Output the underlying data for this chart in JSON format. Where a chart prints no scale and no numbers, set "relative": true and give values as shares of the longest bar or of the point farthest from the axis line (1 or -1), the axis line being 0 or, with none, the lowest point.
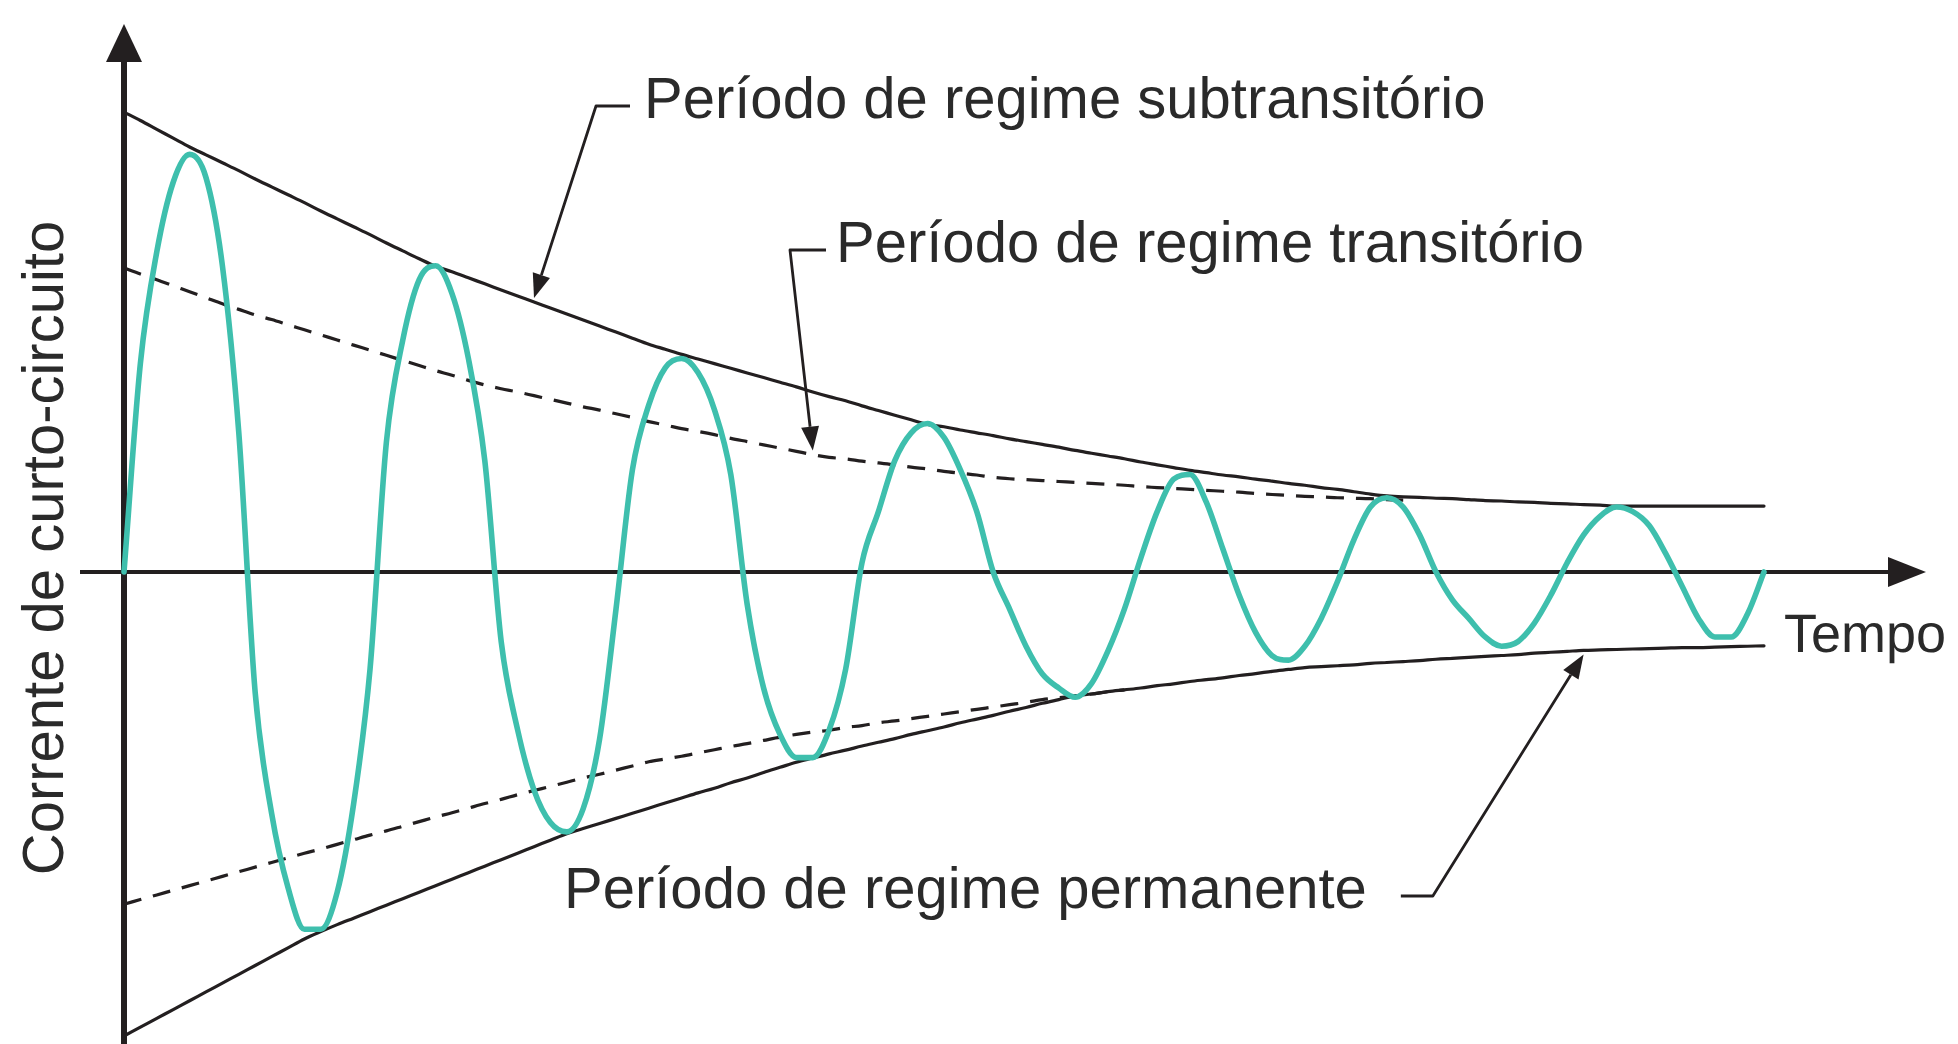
{
  "chart_data": {
    "type": "line",
    "relative": true,
    "marker": "none",
    "xlabel": "Tempo",
    "ylabel": "Corrente de curto-circuito",
    "annotations": [
      "Período de regime subtransitório",
      "Período de regime transitório",
      "Período de regime permanente"
    ],
    "categories": [
      null,
      null,
      null,
      null,
      null,
      null,
      null,
      null,
      null,
      null,
      null,
      null,
      null,
      null,
      null,
      null,
      null,
      null,
      null,
      null,
      null,
      null,
      null,
      null,
      null,
      null,
      null,
      null,
      null,
      null,
      null,
      null,
      null,
      null,
      null,
      null,
      null,
      null,
      null,
      null,
      null,
      null,
      null,
      null,
      null,
      null,
      null,
      null,
      null,
      null,
      null,
      null,
      null,
      null,
      null,
      null,
      null,
      null,
      null,
      null,
      null,
      null,
      null,
      null,
      null,
      null,
      null,
      null,
      null,
      null,
      null,
      null,
      null,
      null,
      null,
      null,
      null,
      null,
      null,
      null,
      null,
      null,
      null,
      null,
      null,
      null,
      null,
      null,
      null,
      null,
      null,
      null,
      null,
      null,
      null,
      null,
      null,
      null,
      null,
      null,
      null
    ],
    "series": [
      {
        "color": "#3ebfad",
        "values": [
          0,
          0.45,
          0.69,
          0.84,
          0.9,
          0.85,
          0.66,
          0.3,
          -0.26,
          -0.52,
          -0.68,
          -0.77,
          -0.77,
          -0.69,
          -0.5,
          -0.21,
          0.28,
          0.5,
          0.63,
          0.66,
          0.6,
          0.46,
          0.24,
          -0.15,
          -0.34,
          -0.47,
          -0.54,
          -0.56,
          -0.51,
          -0.36,
          -0.08,
          0.22,
          0.36,
          0.44,
          0.46,
          0.43,
          0.35,
          0.21,
          -0.07,
          -0.25,
          -0.35,
          -0.4,
          -0.4,
          -0.34,
          -0.21,
          0.02,
          0.13,
          0.24,
          0.3,
          0.32,
          0.29,
          0.22,
          0.13,
          0,
          -0.08,
          -0.16,
          -0.22,
          -0.25,
          -0.27,
          -0.24,
          -0.17,
          -0.08,
          0.03,
          0.13,
          0.2,
          0.21,
          0.15,
          0.05,
          -0.05,
          -0.13,
          -0.18,
          -0.19,
          -0.16,
          -0.1,
          -0.02,
          0.07,
          0.14,
          0.16,
          0.14,
          0.08,
          0,
          -0.06,
          -0.1,
          -0.14,
          -0.16,
          -0.15,
          -0.11,
          -0.05,
          0.02,
          0.08,
          0.12,
          0.14,
          0.13,
          0.1,
          0.04,
          -0.03,
          -0.1,
          -0.14,
          -0.14,
          -0.09,
          0
        ]
      },
      {
        "color": "#231f20",
        "values": [
          0.991,
          0.973,
          0.954,
          0.935,
          0.916,
          0.899,
          0.882,
          0.865,
          0.847,
          0.83,
          0.813,
          0.796,
          0.778,
          0.761,
          0.744,
          0.727,
          0.709,
          0.692,
          0.675,
          0.659,
          0.647,
          0.634,
          0.621,
          0.608,
          0.595,
          0.582,
          0.569,
          0.556,
          0.543,
          0.53,
          0.517,
          0.504,
          0.491,
          0.48,
          0.469,
          0.459,
          0.449,
          0.439,
          0.429,
          0.419,
          0.409,
          0.399,
          0.388,
          0.378,
          0.369,
          0.358,
          0.348,
          0.338,
          0.328,
          0.318,
          0.313,
          0.306,
          0.3,
          0.294,
          0.287,
          0.281,
          0.275,
          0.269,
          0.262,
          0.256,
          0.25,
          0.244,
          0.237,
          0.231,
          0.225,
          0.219,
          0.214,
          0.209,
          0.205,
          0.2,
          0.196,
          0.191,
          0.187,
          0.182,
          0.178,
          0.173,
          0.168,
          0.164,
          0.162,
          0.161,
          0.159,
          0.158,
          0.156,
          0.154,
          0.153,
          0.151,
          0.15,
          0.148,
          0.147,
          0.145,
          0.144,
          0.142,
          0.142,
          0.142,
          0.142,
          0.142,
          0.142,
          0.142,
          0.142,
          0.142,
          0.142
        ]
      },
      {
        "color": "#231f20",
        "values": [
          -1,
          -0.981,
          -0.962,
          -0.943,
          -0.924,
          -0.905,
          -0.886,
          -0.867,
          -0.848,
          -0.829,
          -0.81,
          -0.791,
          -0.775,
          -0.76,
          -0.746,
          -0.732,
          -0.718,
          -0.704,
          -0.69,
          -0.676,
          -0.662,
          -0.648,
          -0.634,
          -0.62,
          -0.606,
          -0.592,
          -0.578,
          -0.564,
          -0.553,
          -0.542,
          -0.531,
          -0.52,
          -0.509,
          -0.498,
          -0.487,
          -0.476,
          -0.466,
          -0.454,
          -0.444,
          -0.432,
          -0.421,
          -0.41,
          -0.401,
          -0.392,
          -0.384,
          -0.375,
          -0.367,
          -0.359,
          -0.35,
          -0.342,
          -0.334,
          -0.325,
          -0.317,
          -0.309,
          -0.3,
          -0.292,
          -0.283,
          -0.275,
          -0.267,
          -0.263,
          -0.258,
          -0.254,
          -0.25,
          -0.245,
          -0.241,
          -0.236,
          -0.232,
          -0.228,
          -0.223,
          -0.219,
          -0.214,
          -0.21,
          -0.206,
          -0.204,
          -0.202,
          -0.2,
          -0.197,
          -0.195,
          -0.193,
          -0.191,
          -0.188,
          -0.186,
          -0.184,
          -0.182,
          -0.18,
          -0.178,
          -0.175,
          -0.173,
          -0.171,
          -0.169,
          -0.168,
          -0.167,
          -0.166,
          -0.165,
          -0.164,
          -0.163,
          -0.163,
          -0.162,
          -0.161,
          -0.16,
          -0.159
        ]
      },
      {
        "color": "#231f20",
        "line_style": "dashed",
        "values": [
          0.655,
          0.642,
          0.63,
          0.617,
          0.604,
          0.591,
          0.578,
          0.566,
          0.554,
          0.544,
          0.533,
          0.522,
          0.511,
          0.5,
          0.489,
          0.478,
          0.467,
          0.456,
          0.445,
          0.434,
          0.424,
          0.413,
          0.403,
          0.395,
          0.388,
          0.38,
          0.372,
          0.364,
          0.356,
          0.349,
          0.341,
          0.333,
          0.324,
          0.317,
          0.309,
          0.303,
          0.296,
          0.288,
          0.281,
          0.274,
          0.267,
          0.26,
          0.253,
          0.247,
          0.244,
          0.239,
          0.235,
          0.231,
          0.226,
          0.222,
          0.217,
          0.213,
          0.209,
          0.204,
          0.201,
          0.199,
          0.197,
          0.195,
          0.193,
          0.191,
          0.189,
          0.187,
          0.184,
          0.182,
          0.18,
          0.178,
          0.176,
          0.174,
          0.172,
          0.169,
          0.167,
          0.165,
          0.163,
          0.162,
          0.16,
          0.159,
          0.158,
          0.156,
          0.155,
          null,
          null,
          null,
          null,
          null,
          null,
          null,
          null,
          null,
          null,
          null,
          null,
          null,
          null,
          null,
          null,
          null,
          null,
          null,
          null,
          null,
          null
        ]
      },
      {
        "color": "#231f20",
        "line_style": "dashed",
        "values": [
          -0.716,
          -0.706,
          -0.696,
          -0.686,
          -0.676,
          -0.666,
          -0.656,
          -0.646,
          -0.636,
          -0.626,
          -0.616,
          -0.606,
          -0.597,
          -0.587,
          -0.577,
          -0.567,
          -0.558,
          -0.548,
          -0.538,
          -0.528,
          -0.519,
          -0.509,
          -0.499,
          -0.49,
          -0.48,
          -0.471,
          -0.462,
          -0.453,
          -0.444,
          -0.436,
          -0.427,
          -0.418,
          -0.409,
          -0.403,
          -0.397,
          -0.39,
          -0.383,
          -0.376,
          -0.37,
          -0.363,
          -0.356,
          -0.35,
          -0.345,
          -0.341,
          -0.335,
          -0.331,
          -0.325,
          -0.321,
          -0.316,
          -0.311,
          -0.306,
          -0.301,
          -0.296,
          -0.291,
          -0.286,
          -0.281,
          -0.275,
          -0.271,
          -0.267,
          -0.263,
          -0.258,
          -0.254,
          null,
          null,
          null,
          null,
          null,
          null,
          null,
          null,
          null,
          null,
          null,
          null,
          null,
          null,
          null,
          null,
          null,
          null,
          null,
          null,
          null,
          null,
          null,
          null,
          null,
          null,
          null,
          null,
          null,
          null,
          null,
          null,
          null,
          null,
          null,
          null,
          null,
          null,
          null
        ]
      }
    ]
  }
}
